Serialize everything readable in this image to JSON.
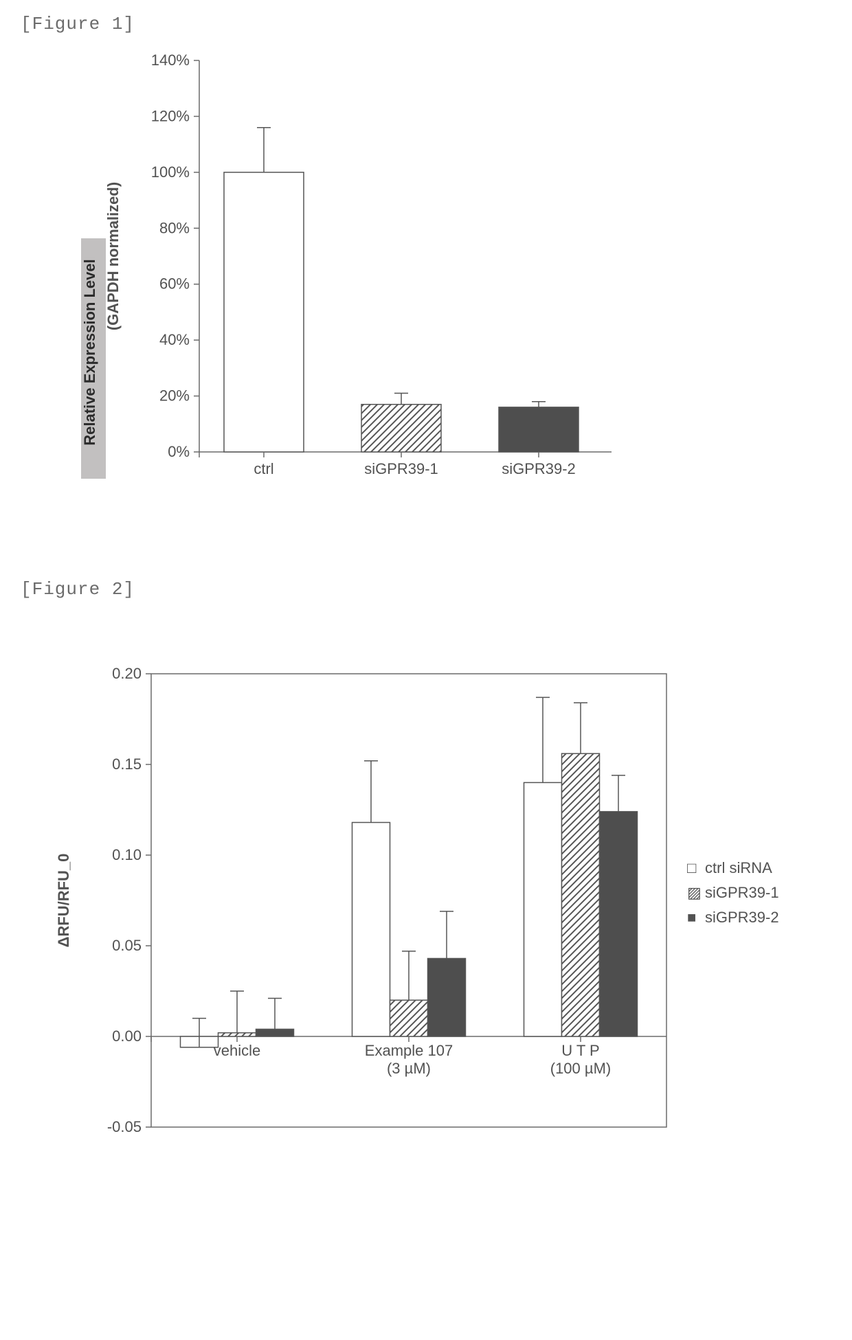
{
  "figure1": {
    "label": "[Figure 1]",
    "type": "bar",
    "ylabel_part1": "Relative Expression Level",
    "ylabel_part2": "(GAPDH normalized)",
    "ylabel_part1_bg": "#c2c0c0",
    "ylim": [
      0,
      140
    ],
    "ytick_step": 20,
    "yticks": [
      "0%",
      "20%",
      "40%",
      "60%",
      "80%",
      "100%",
      "120%",
      "140%"
    ],
    "categories": [
      "ctrl",
      "siGPR39-1",
      "siGPR39-2"
    ],
    "values": [
      100,
      17,
      16
    ],
    "errors": [
      16,
      4,
      2
    ],
    "bar_fill": [
      "#ffffff",
      "hatch",
      "#4e4e4e"
    ],
    "bar_border": "#555555",
    "hatch_color": "#555555",
    "axis_color": "#6a6a6a",
    "tick_color": "#6a6a6a",
    "text_color": "#525252",
    "label_fontsize": 22,
    "tick_fontsize": 22,
    "bar_width_ratio": 0.58,
    "bar_border_width": 1.5,
    "error_bar_color": "#555555",
    "error_bar_width": 1.5,
    "error_cap_width": 10
  },
  "figure2": {
    "label": "[Figure 2]",
    "type": "grouped-bar",
    "ylabel": "ΔRFU/RFU_0",
    "ylim": [
      -0.05,
      0.2
    ],
    "ytick_step": 0.05,
    "yticks": [
      "-0.05",
      "0.00",
      "0.05",
      "0.10",
      "0.15",
      "0.20"
    ],
    "group_labels": [
      {
        "line1": "vehicle",
        "line2": ""
      },
      {
        "line1": "Example 107",
        "line2": "(3 µM)"
      },
      {
        "line1": "U T P",
        "line2": "(100 µM)"
      }
    ],
    "series": [
      {
        "name": "ctrl siRNA",
        "fill": "#ffffff",
        "pattern": "none"
      },
      {
        "name": "siGPR39-1",
        "fill": "#ffffff",
        "pattern": "hatch"
      },
      {
        "name": "siGPR39-2",
        "fill": "#4e4e4e",
        "pattern": "solid"
      }
    ],
    "legend_symbols": [
      "□",
      "▨",
      "■"
    ],
    "values": [
      [
        -0.006,
        0.002,
        0.004
      ],
      [
        0.118,
        0.02,
        0.043
      ],
      [
        0.14,
        0.156,
        0.124
      ]
    ],
    "errors": [
      [
        0.016,
        0.023,
        0.017
      ],
      [
        0.034,
        0.027,
        0.026
      ],
      [
        0.047,
        0.028,
        0.02
      ]
    ],
    "frame_color": "#6a6a6a",
    "axis_color": "#6a6a6a",
    "text_color": "#525252",
    "bar_border": "#555555",
    "hatch_color": "#555555",
    "error_bar_color": "#555555",
    "label_fontsize": 22,
    "tick_fontsize": 22,
    "legend_fontsize": 22,
    "bar_width_ratio": 0.22,
    "bar_border_width": 1.5,
    "error_bar_width": 1.5,
    "error_cap_width": 10
  }
}
